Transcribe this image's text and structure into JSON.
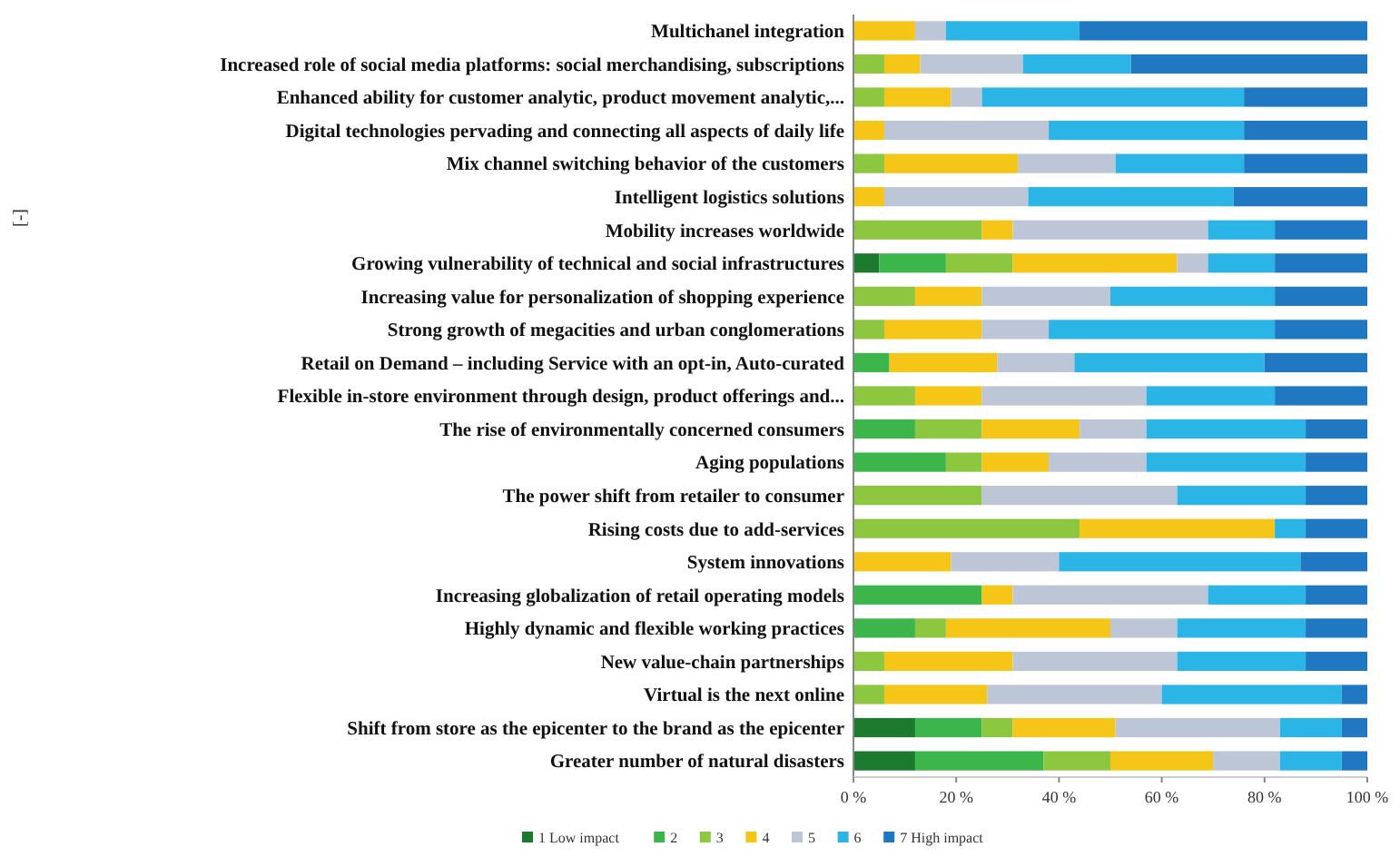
{
  "chart_data": {
    "type": "bar",
    "orientation": "horizontal",
    "stacked": true,
    "annotations": [
      "[-]"
    ],
    "categories": [
      "Multichanel integration",
      "Increased role of social media platforms: social merchandising, subscriptions",
      "Enhanced ability for customer analytic, product movement analytic,...",
      "Digital technologies pervading and connecting all aspects of daily life",
      "Mix channel switching behavior of the customers",
      "Intelligent logistics solutions",
      "Mobility increases worldwide",
      "Growing vulnerability of technical and social infrastructures",
      "Increasing value for personalization of shopping experience",
      "Strong growth of megacities and urban conglomerations",
      "Retail on Demand – including Service with an opt-in, Auto-curated",
      "Flexible in-store environment through design, product offerings and...",
      "The rise of environmentally concerned consumers",
      "Aging populations",
      "The power shift from retailer to consumer",
      "Rising costs due to add-services",
      "System innovations",
      "Increasing globalization of retail operating models",
      "Highly dynamic and flexible working practices",
      "New value-chain partnerships",
      "Virtual is the next online",
      "Shift from store as the epicenter to the brand as the epicenter",
      "Greater number of natural disasters"
    ],
    "series": [
      {
        "name": "1 Low impact",
        "color": "#1b7a2e",
        "values": [
          0,
          0,
          0,
          0,
          0,
          0,
          0,
          5,
          0,
          0,
          0,
          0,
          0,
          0,
          0,
          0,
          0,
          0,
          0,
          0,
          0,
          12,
          12
        ]
      },
      {
        "name": "2",
        "color": "#3cb54a",
        "values": [
          0,
          0,
          0,
          0,
          0,
          0,
          0,
          13,
          0,
          0,
          7,
          0,
          12,
          18,
          0,
          0,
          0,
          25,
          12,
          0,
          0,
          13,
          25
        ]
      },
      {
        "name": "3",
        "color": "#8dc63f",
        "values": [
          0,
          6,
          6,
          0,
          6,
          0,
          25,
          13,
          12,
          6,
          0,
          12,
          13,
          7,
          25,
          44,
          0,
          0,
          6,
          6,
          6,
          6,
          13
        ]
      },
      {
        "name": "4",
        "color": "#f5c518",
        "values": [
          12,
          7,
          13,
          6,
          26,
          6,
          6,
          32,
          13,
          19,
          21,
          13,
          19,
          13,
          0,
          38,
          19,
          6,
          32,
          25,
          20,
          20,
          20
        ]
      },
      {
        "name": "5",
        "color": "#bcc6d6",
        "values": [
          6,
          20,
          6,
          32,
          19,
          28,
          38,
          6,
          25,
          13,
          15,
          32,
          13,
          19,
          38,
          0,
          21,
          38,
          13,
          32,
          34,
          32,
          13
        ]
      },
      {
        "name": "6",
        "color": "#2bb5e6",
        "values": [
          26,
          21,
          51,
          38,
          25,
          40,
          13,
          13,
          32,
          44,
          37,
          25,
          31,
          31,
          25,
          6,
          47,
          19,
          25,
          25,
          35,
          12,
          12
        ]
      },
      {
        "name": "7 High impact",
        "color": "#1f78c1",
        "values": [
          56,
          46,
          24,
          24,
          24,
          26,
          18,
          18,
          18,
          18,
          20,
          18,
          12,
          12,
          12,
          12,
          13,
          12,
          12,
          12,
          5,
          5,
          5
        ]
      }
    ],
    "xlim": [
      0,
      100
    ],
    "xticks": [
      {
        "value": 0,
        "label": "0 %"
      },
      {
        "value": 20,
        "label": "20 %"
      },
      {
        "value": 40,
        "label": "40 %"
      },
      {
        "value": 60,
        "label": "60 %"
      },
      {
        "value": 80,
        "label": "80 %"
      },
      {
        "value": 100,
        "label": "100 %"
      }
    ],
    "legend": "bottom"
  }
}
